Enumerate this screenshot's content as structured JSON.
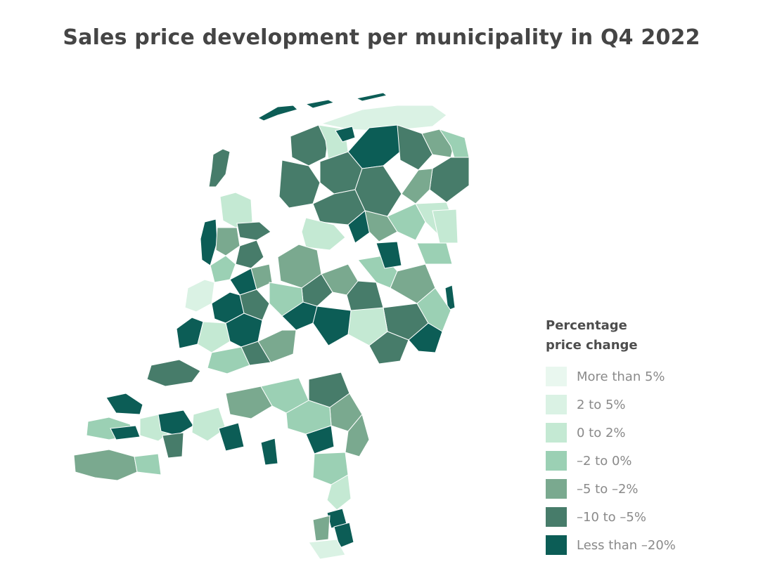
{
  "title": "Sales price development per municipality in Q4 2022",
  "legend": {
    "title_line1": "Percentage",
    "title_line2": "price change",
    "items": [
      {
        "label": "More than 5%",
        "color": "#e9f7ef"
      },
      {
        "label": "2 to 5%",
        "color": "#daf2e4"
      },
      {
        "label": "0 to 2%",
        "color": "#c4e9d3"
      },
      {
        "label": "–2 to 0%",
        "color": "#9bd0b4"
      },
      {
        "label": "–5 to –2%",
        "color": "#7aa98f"
      },
      {
        "label": "–10 to –5%",
        "color": "#477c6a"
      },
      {
        "label": "Less than –20%",
        "color": "#0c5d56"
      }
    ]
  },
  "map": {
    "region": "Netherlands",
    "unit": "municipality"
  }
}
